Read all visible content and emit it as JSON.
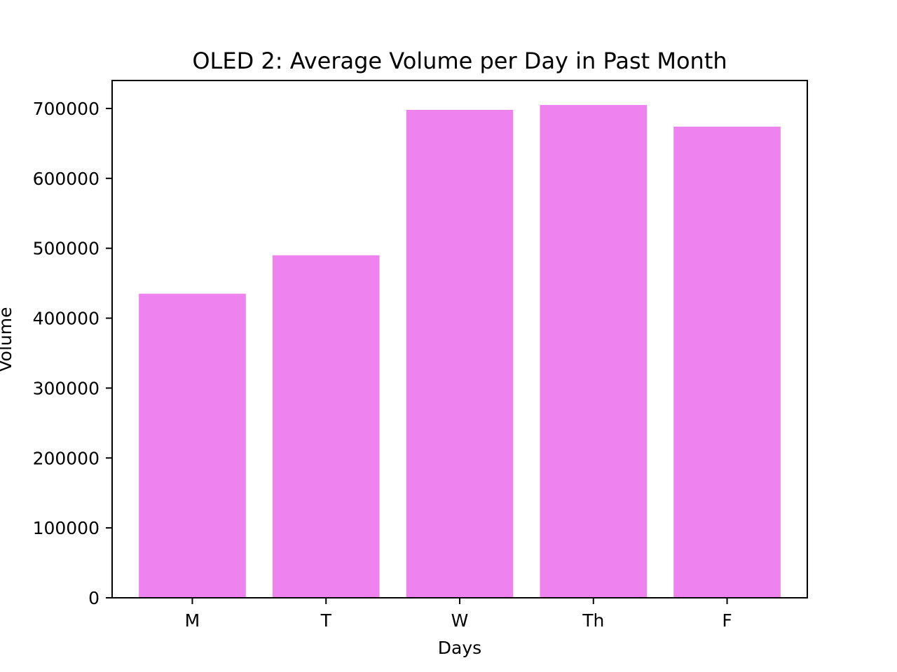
{
  "chart_data": {
    "type": "bar",
    "title": "OLED 2: Average Volume per Day in Past Month",
    "xlabel": "Days",
    "ylabel": "Volume",
    "categories": [
      "M",
      "T",
      "W",
      "Th",
      "F"
    ],
    "values": [
      435000,
      490000,
      698000,
      705000,
      674000
    ],
    "ylim": [
      0,
      740000
    ],
    "yticks": [
      0,
      100000,
      200000,
      300000,
      400000,
      500000,
      600000,
      700000
    ],
    "ytick_labels": [
      "0",
      "100000",
      "200000",
      "300000",
      "400000",
      "500000",
      "600000",
      "700000"
    ],
    "bar_color": "#ee82ee",
    "grid": false,
    "legend": "none"
  }
}
